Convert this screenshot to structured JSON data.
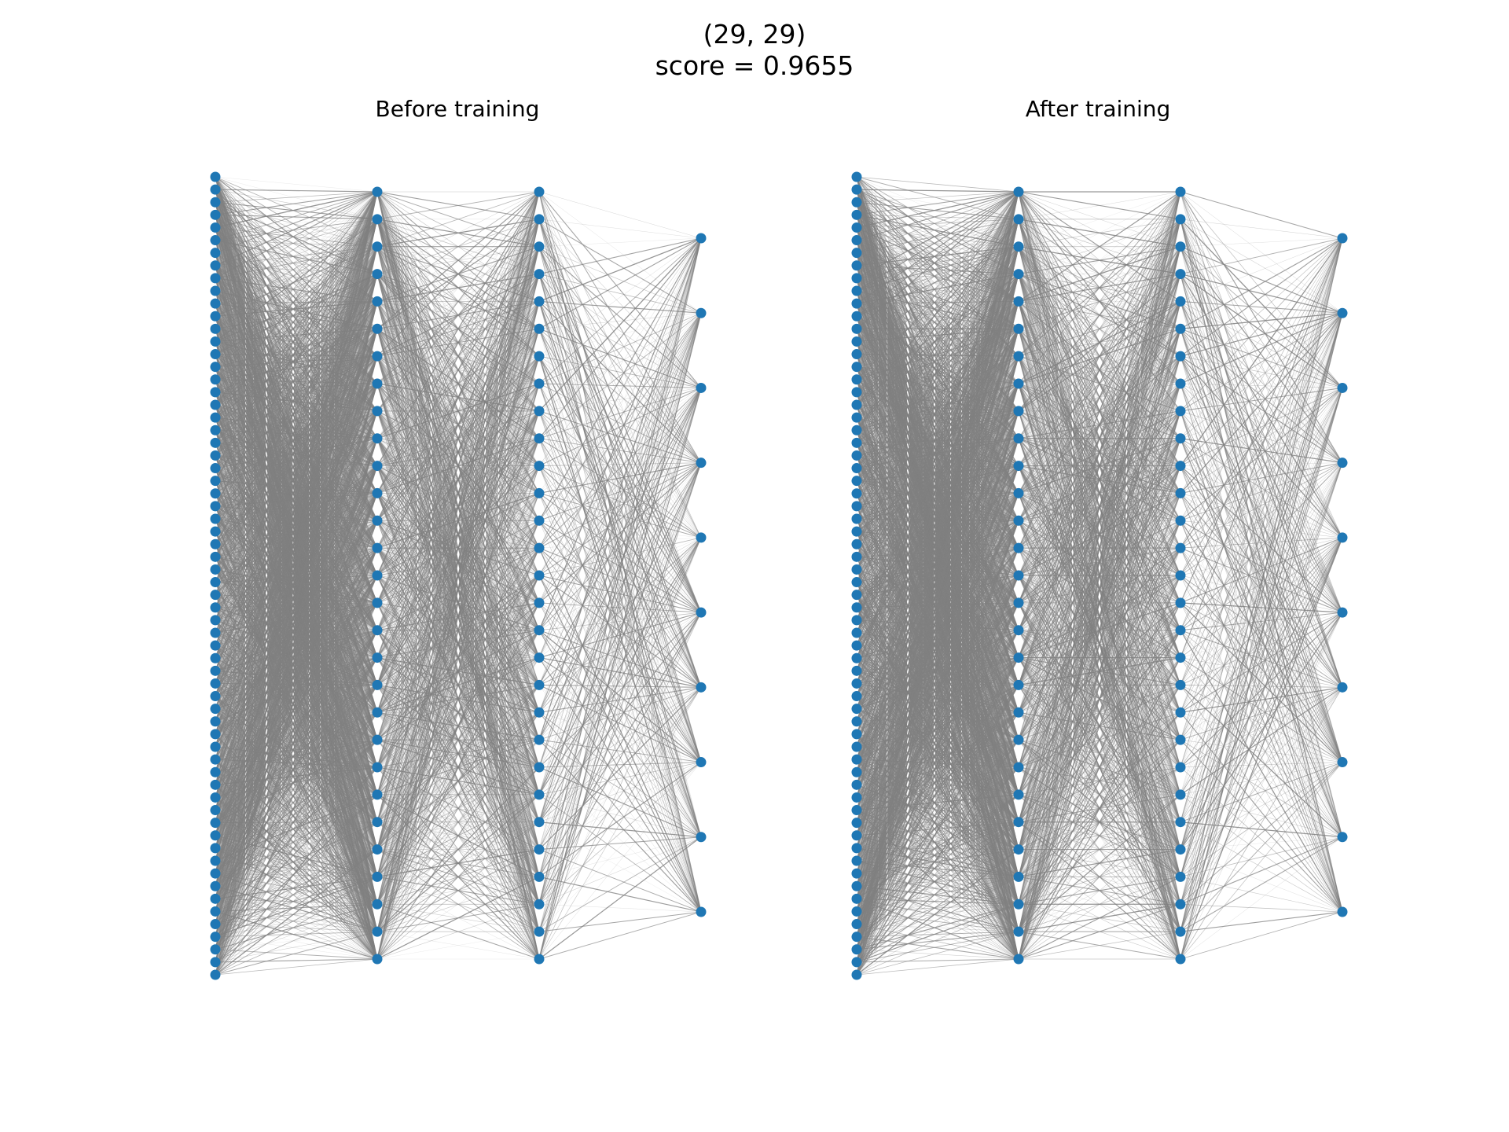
{
  "figure": {
    "title_line1": "(29, 29)",
    "title_line2": "score = 0.9655"
  },
  "panels": [
    {
      "title": "Before training"
    },
    {
      "title": "After training"
    }
  ],
  "network": {
    "layer_sizes": [
      64,
      29,
      29,
      10
    ],
    "node_color": "#1f77b4",
    "edge_color": "#808080"
  }
}
